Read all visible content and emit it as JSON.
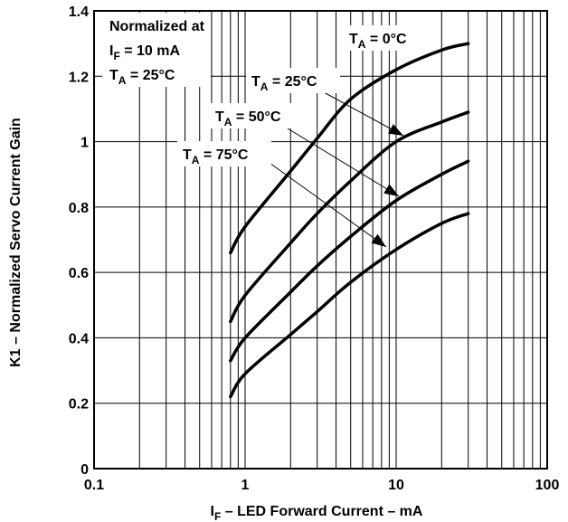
{
  "chart_data": {
    "type": "line",
    "xscale": "log",
    "xlim": [
      0.1,
      100
    ],
    "ylim": [
      0,
      1.4
    ],
    "x_ticks": [
      0.1,
      1,
      10,
      100
    ],
    "x_tick_labels": [
      "0.1",
      "1",
      "10",
      "100"
    ],
    "y_ticks": [
      0,
      0.2,
      0.4,
      0.6,
      0.8,
      1,
      1.2,
      1.4
    ],
    "y_tick_labels": [
      "0",
      "0.2",
      "0.4",
      "0.6",
      "0.8",
      "1",
      "1.2",
      "1.4"
    ],
    "grid": true,
    "xlabel": {
      "main": "I",
      "sub": "F",
      "rest": " – LED Forward Current – mA"
    },
    "ylabel": "K1 – Normalized Servo Current Gain",
    "note": {
      "line1": "Normalized at",
      "line2_main": "I",
      "line2_sub": "F",
      "line2_rest": " = 10 mA",
      "line3_main": "T",
      "line3_sub": "A",
      "line3_rest": " = 25°C"
    },
    "series": [
      {
        "name": {
          "main": "T",
          "sub": "A",
          "rest": " = 0°C"
        },
        "x": [
          0.8,
          1,
          2,
          3,
          5,
          10,
          20,
          30
        ],
        "y": [
          0.66,
          0.74,
          0.91,
          1.01,
          1.13,
          1.22,
          1.28,
          1.3
        ]
      },
      {
        "name": {
          "main": "T",
          "sub": "A",
          "rest": " = 25°C"
        },
        "x": [
          0.8,
          1,
          2,
          3,
          5,
          10,
          20,
          30
        ],
        "y": [
          0.45,
          0.53,
          0.69,
          0.78,
          0.88,
          1.0,
          1.06,
          1.09
        ]
      },
      {
        "name": {
          "main": "T",
          "sub": "A",
          "rest": " = 50°C"
        },
        "x": [
          0.8,
          1,
          2,
          3,
          5,
          10,
          20,
          30
        ],
        "y": [
          0.33,
          0.4,
          0.54,
          0.62,
          0.71,
          0.82,
          0.9,
          0.94
        ]
      },
      {
        "name": {
          "main": "T",
          "sub": "A",
          "rest": " = 75°C"
        },
        "x": [
          0.8,
          1,
          2,
          3,
          5,
          10,
          20,
          30
        ],
        "y": [
          0.22,
          0.29,
          0.41,
          0.48,
          0.57,
          0.67,
          0.75,
          0.78
        ]
      }
    ]
  }
}
